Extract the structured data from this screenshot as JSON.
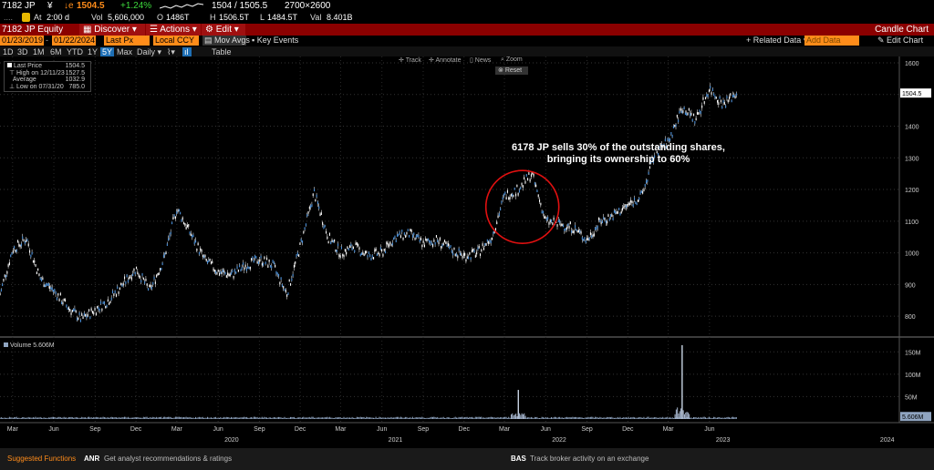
{
  "header": {
    "ticker": "7182 JP",
    "currency_symbol": "¥",
    "price_flag": "↓e",
    "last_price": "1504.5",
    "change": "+1.24%",
    "bid_ask": "1504 / 1505.5",
    "size": "2700×2600",
    "at_label": "At",
    "time": "2:00 d",
    "vol_label": "Vol",
    "volume": "5,606,000",
    "open_label": "O",
    "open": "1486T",
    "high_label": "H",
    "high": "1506.5T",
    "low_label": "L",
    "low": "1484.5T",
    "val_label": "Val",
    "value": "8.401B"
  },
  "menubar": {
    "security": "7182 JP Equity",
    "discover": "Discover",
    "actions": "Actions",
    "edit": "Edit",
    "title": "Candle Chart"
  },
  "controls": {
    "start_date": "01/23/2019",
    "end_date": "01/22/2024",
    "price_field": "Last Px",
    "currency": "Local CCY",
    "study": "Mov Avgs",
    "events": "Key Events",
    "related_data": "Related Data",
    "add_data": "Add Data",
    "edit_chart": "Edit Chart"
  },
  "periods": [
    "1D",
    "3D",
    "1M",
    "6M",
    "YTD",
    "1Y",
    "5Y",
    "Max"
  ],
  "selected_period": "5Y",
  "frequency": "Daily",
  "table_label": "Table",
  "toolbar": {
    "track": "Track",
    "annotate": "Annotate",
    "news": "News",
    "zoom": "Zoom",
    "reset": "Reset"
  },
  "legend": {
    "last_price_label": "Last Price",
    "last_price": "1504.5",
    "high_label": "High on 12/11/23",
    "high": "1527.5",
    "average_label": "Average",
    "average": "1032.9",
    "low_label": "Low on 07/31/20",
    "low": "785.0"
  },
  "volume_legend": "Volume 5.606M",
  "annotation": "6178 JP sells 30% of the outstanding shares, bringing its ownership to 60%",
  "footer": {
    "suggested": "Suggested Functions",
    "f1_code": "ANR",
    "f1_text": "Get analyst recommendations & ratings",
    "f2_code": "BAS",
    "f2_text": "Track broker activity on an exchange"
  },
  "colors": {
    "accent": "#ff8c1a",
    "menu_red": "#b31515",
    "candle_blue": "#4a90d9",
    "circle": "#e01010"
  },
  "chart_data": {
    "type": "line",
    "title": "",
    "price_axis": {
      "ylim": [
        740,
        1620
      ],
      "ticks": [
        800,
        900,
        1000,
        1100,
        1200,
        1300,
        1400,
        1500,
        1600
      ]
    },
    "volume_axis": {
      "ylim": [
        0,
        175
      ],
      "ticks": [
        "50M",
        "100M",
        "150M"
      ],
      "tick_values": [
        50,
        100,
        150
      ]
    },
    "last_price_label": "1504.5",
    "volume_last_label": "5.606M",
    "x_ticks": [
      "Mar",
      "Jun",
      "Sep",
      "Dec",
      "Mar",
      "Jun",
      "Sep",
      "Dec",
      "Mar",
      "Jun",
      "Sep",
      "Dec",
      "Mar",
      "Jun",
      "Sep",
      "Dec",
      "Mar",
      "Jun"
    ],
    "x_tick_months": [
      "2019-03",
      "2019-06",
      "2019-09",
      "2019-12",
      "2020-03",
      "2020-06",
      "2020-09",
      "2020-12",
      "2021-03",
      "2021-06",
      "2021-09",
      "2021-12",
      "2022-03",
      "2022-06",
      "2022-09",
      "2022-12",
      "2023-03",
      "2023-06"
    ],
    "year_labels": [
      "2020",
      "2021",
      "2022",
      "2023",
      "2024"
    ],
    "year_label_months": [
      "2020-07",
      "2021-07",
      "2022-07",
      "2023-07",
      "2024-07"
    ],
    "x_range": [
      "2019-02-01",
      "2024-07-28"
    ],
    "series": [
      {
        "values": [
          [
            "2019-02-01",
            870
          ],
          [
            "2019-03-01",
            1010
          ],
          [
            "2019-04-01",
            1045
          ],
          [
            "2019-05-01",
            920
          ],
          [
            "2019-06-01",
            880
          ],
          [
            "2019-07-01",
            830
          ],
          [
            "2019-08-01",
            790
          ],
          [
            "2019-09-01",
            820
          ],
          [
            "2019-10-01",
            850
          ],
          [
            "2019-11-01",
            900
          ],
          [
            "2019-12-01",
            950
          ],
          [
            "2020-01-01",
            880
          ],
          [
            "2020-02-01",
            980
          ],
          [
            "2020-03-01",
            1140
          ],
          [
            "2020-04-01",
            1060
          ],
          [
            "2020-05-01",
            980
          ],
          [
            "2020-06-01",
            940
          ],
          [
            "2020-07-01",
            930
          ],
          [
            "2020-08-01",
            960
          ],
          [
            "2020-09-01",
            980
          ],
          [
            "2020-10-01",
            960
          ],
          [
            "2020-11-01",
            870
          ],
          [
            "2020-12-01",
            1020
          ],
          [
            "2021-01-01",
            1190
          ],
          [
            "2021-02-01",
            1050
          ],
          [
            "2021-03-01",
            1000
          ],
          [
            "2021-04-01",
            1020
          ],
          [
            "2021-05-01",
            990
          ],
          [
            "2021-06-01",
            1000
          ],
          [
            "2021-07-01",
            1050
          ],
          [
            "2021-08-01",
            1060
          ],
          [
            "2021-09-01",
            1030
          ],
          [
            "2021-10-01",
            1040
          ],
          [
            "2021-11-01",
            1010
          ],
          [
            "2021-12-01",
            990
          ],
          [
            "2022-01-01",
            1000
          ],
          [
            "2022-02-01",
            1050
          ],
          [
            "2022-03-01",
            1180
          ],
          [
            "2022-04-01",
            1200
          ],
          [
            "2022-05-01",
            1250
          ],
          [
            "2022-06-01",
            1100
          ],
          [
            "2022-07-01",
            1090
          ],
          [
            "2022-08-01",
            1080
          ],
          [
            "2022-09-01",
            1040
          ],
          [
            "2022-10-01",
            1100
          ],
          [
            "2022-11-01",
            1120
          ],
          [
            "2022-12-01",
            1150
          ],
          [
            "2023-01-01",
            1180
          ],
          [
            "2023-02-01",
            1320
          ],
          [
            "2023-03-01",
            1350
          ],
          [
            "2023-04-01",
            1460
          ],
          [
            "2023-05-01",
            1420
          ],
          [
            "2023-06-01",
            1520
          ],
          [
            "2023-07-01",
            1470
          ],
          [
            "2023-08-01",
            1504.5
          ]
        ]
      }
    ],
    "volume_spikes": [
      [
        "2022-04-01",
        65
      ],
      [
        "2023-04-01",
        165
      ]
    ]
  }
}
